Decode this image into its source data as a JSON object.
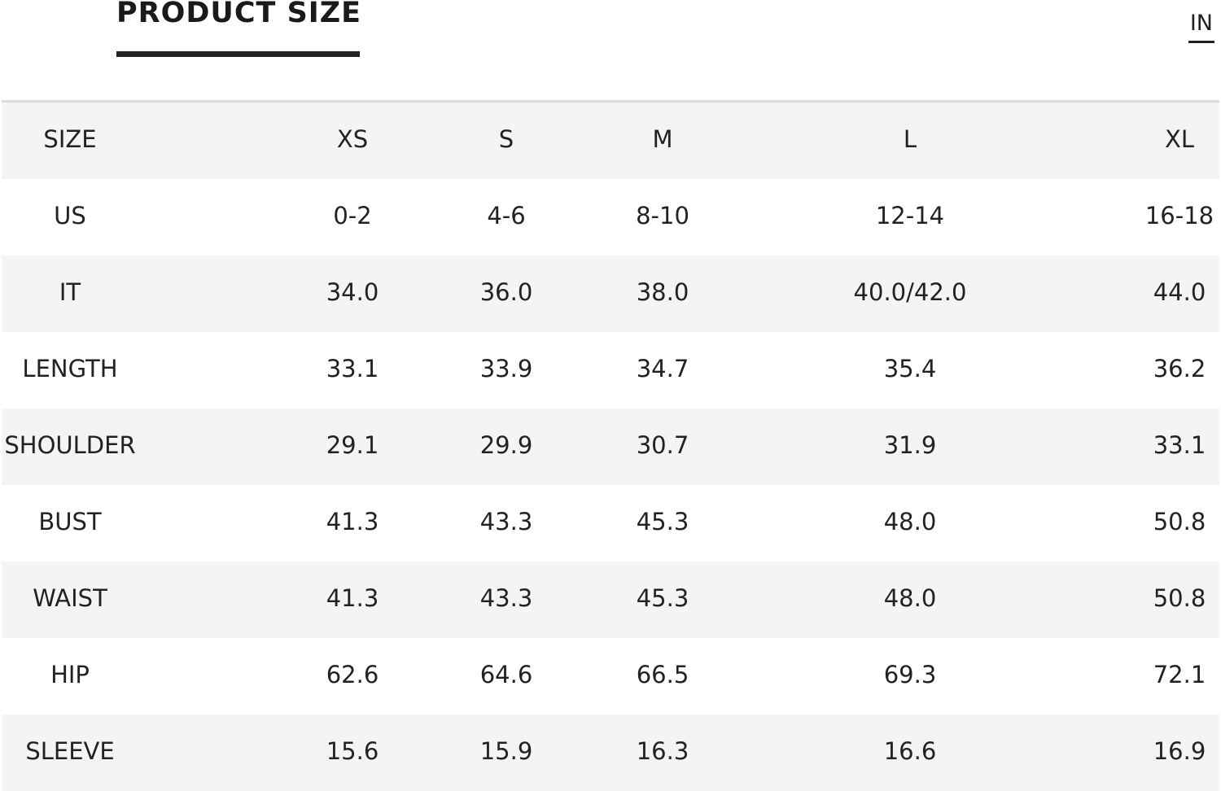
{
  "header": {
    "tab_label": "PRODUCT SIZE",
    "unit_label": "IN"
  },
  "table": {
    "columns": [
      "SIZE",
      "XS",
      "S",
      "M",
      "L",
      "XL"
    ],
    "rows": [
      [
        "US",
        "0-2",
        "4-6",
        "8-10",
        "12-14",
        "16-18"
      ],
      [
        "IT",
        "34.0",
        "36.0",
        "38.0",
        "40.0/42.0",
        "44.0"
      ],
      [
        "LENGTH",
        "33.1",
        "33.9",
        "34.7",
        "35.4",
        "36.2"
      ],
      [
        "SHOULDER",
        "29.1",
        "29.9",
        "30.7",
        "31.9",
        "33.1"
      ],
      [
        "BUST",
        "41.3",
        "43.3",
        "45.3",
        "48.0",
        "50.8"
      ],
      [
        "WAIST",
        "41.3",
        "43.3",
        "45.3",
        "48.0",
        "50.8"
      ],
      [
        "HIP",
        "62.6",
        "64.6",
        "66.5",
        "69.3",
        "72.1"
      ],
      [
        "SLEEVE",
        "15.6",
        "15.9",
        "16.3",
        "16.6",
        "16.9"
      ]
    ]
  },
  "colors": {
    "text": "#222222",
    "row_shade": "#f4f4f4",
    "divider": "#dddddd",
    "background": "#ffffff"
  }
}
